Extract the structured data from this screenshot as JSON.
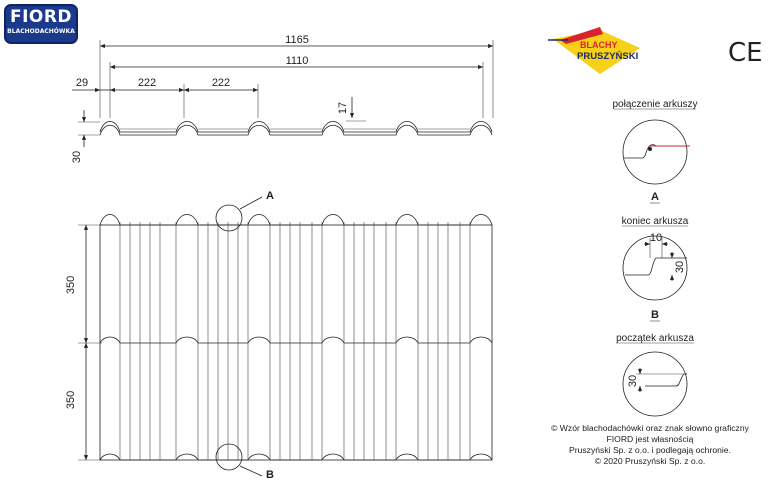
{
  "logo_fiord": {
    "line1": "FIORD",
    "line2": "BLACHODACHÓWKA"
  },
  "logo_brand": {
    "line1": "BLACHY",
    "line2": "PRUSZYŃSKI"
  },
  "ce_mark": "CE",
  "top_view": {
    "dim_total": "1165",
    "dim_effective": "1110",
    "dim_edge": "29",
    "dim_module_1": "222",
    "dim_module_2": "222",
    "dim_step": "17",
    "dim_height": "30"
  },
  "front_view": {
    "dim_row_1": "350",
    "dim_row_2": "350",
    "marker_a": "A",
    "marker_b": "B"
  },
  "details": {
    "joint": {
      "title": "połączenie arkuszy",
      "letter": "A"
    },
    "end": {
      "title": "koniec arkusza",
      "letter": "B",
      "dim_w": "10",
      "dim_h": "30"
    },
    "start": {
      "title": "początek arkusza",
      "dim_h": "30"
    }
  },
  "copyright": {
    "line1": "© Wzór blachodachówki oraz znak słowno graficzny",
    "line2": "FIORD jest własnością",
    "line3": "Pruszyński Sp. z o.o.  i podlegają ochronie.",
    "line4": "© 2020 Pruszyński Sp. z o.o."
  },
  "colors": {
    "line": "#222222",
    "fiord_blue": "#1b3a8c",
    "brand_red": "#d9232d",
    "brand_yellow": "#f7d117",
    "brand_navy": "#1b2a6b"
  }
}
